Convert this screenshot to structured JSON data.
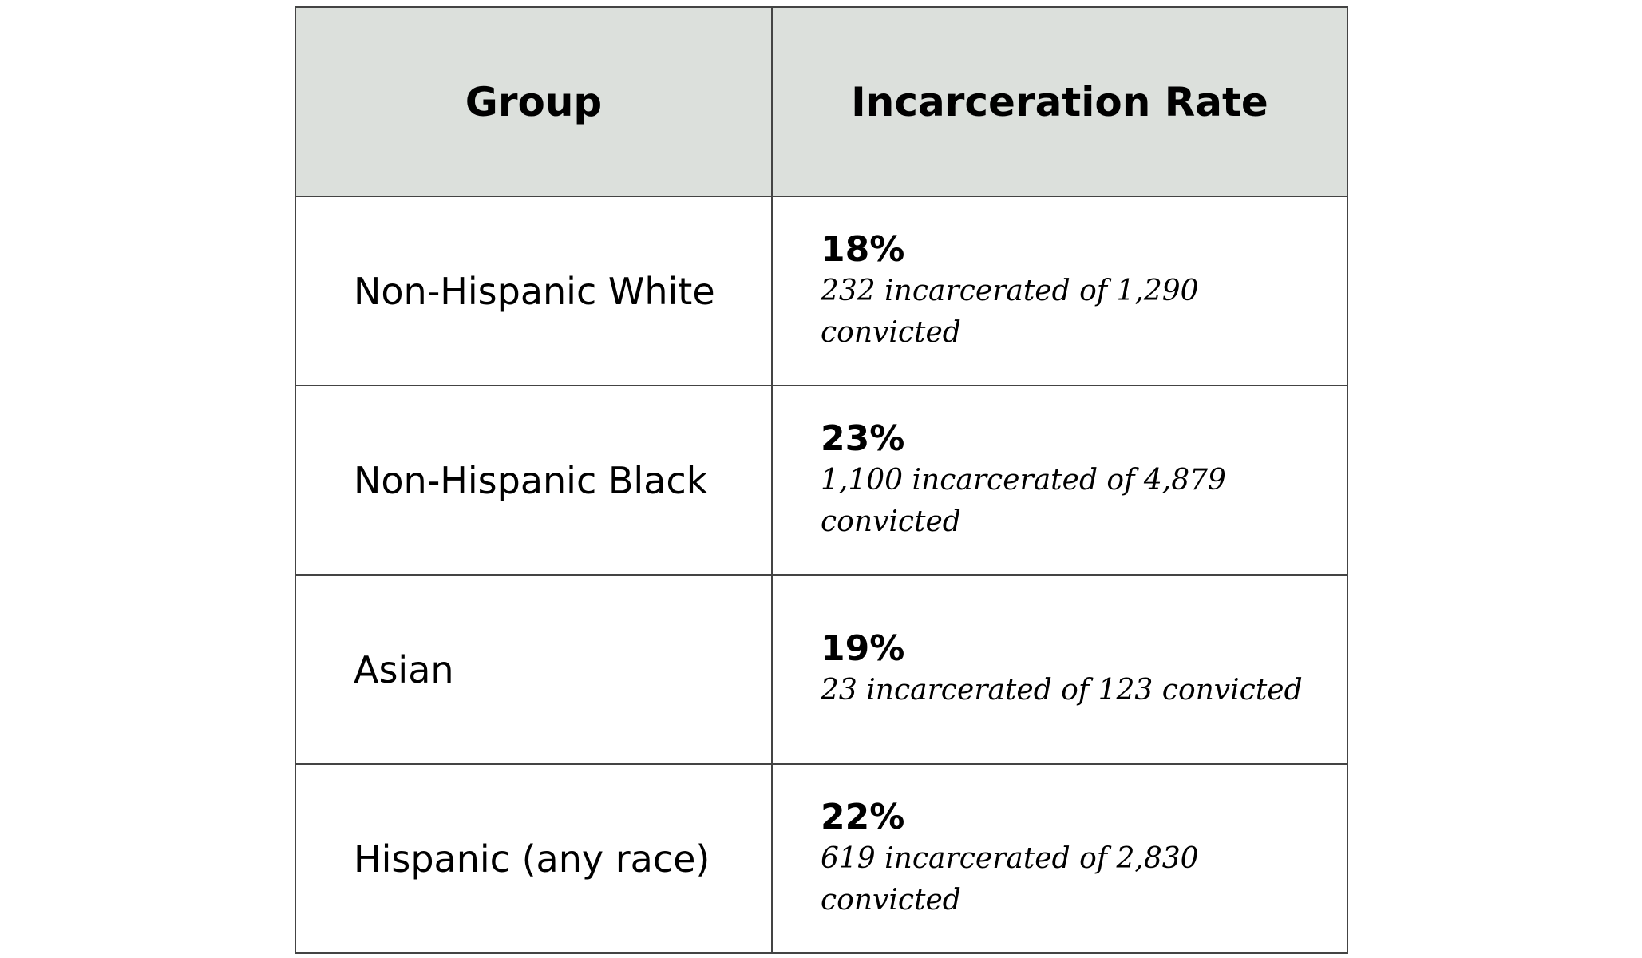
{
  "table": {
    "headers": [
      "Group",
      "Incarceration Rate"
    ],
    "rows": [
      {
        "group": "Non-Hispanic White",
        "rate": "18%",
        "detail": "232 incarcerated of 1,290 convicted"
      },
      {
        "group": "Non-Hispanic Black",
        "rate": "23%",
        "detail": "1,100 incarcerated of 4,879 convicted"
      },
      {
        "group": "Asian",
        "rate": "19%",
        "detail": "23 incarcerated of 123 convicted"
      },
      {
        "group": "Hispanic (any race)",
        "rate": "22%",
        "detail": "619 incarcerated of 2,830 convicted"
      }
    ]
  },
  "colors": {
    "header_bg": "#dce0dc",
    "border": "#444444"
  }
}
